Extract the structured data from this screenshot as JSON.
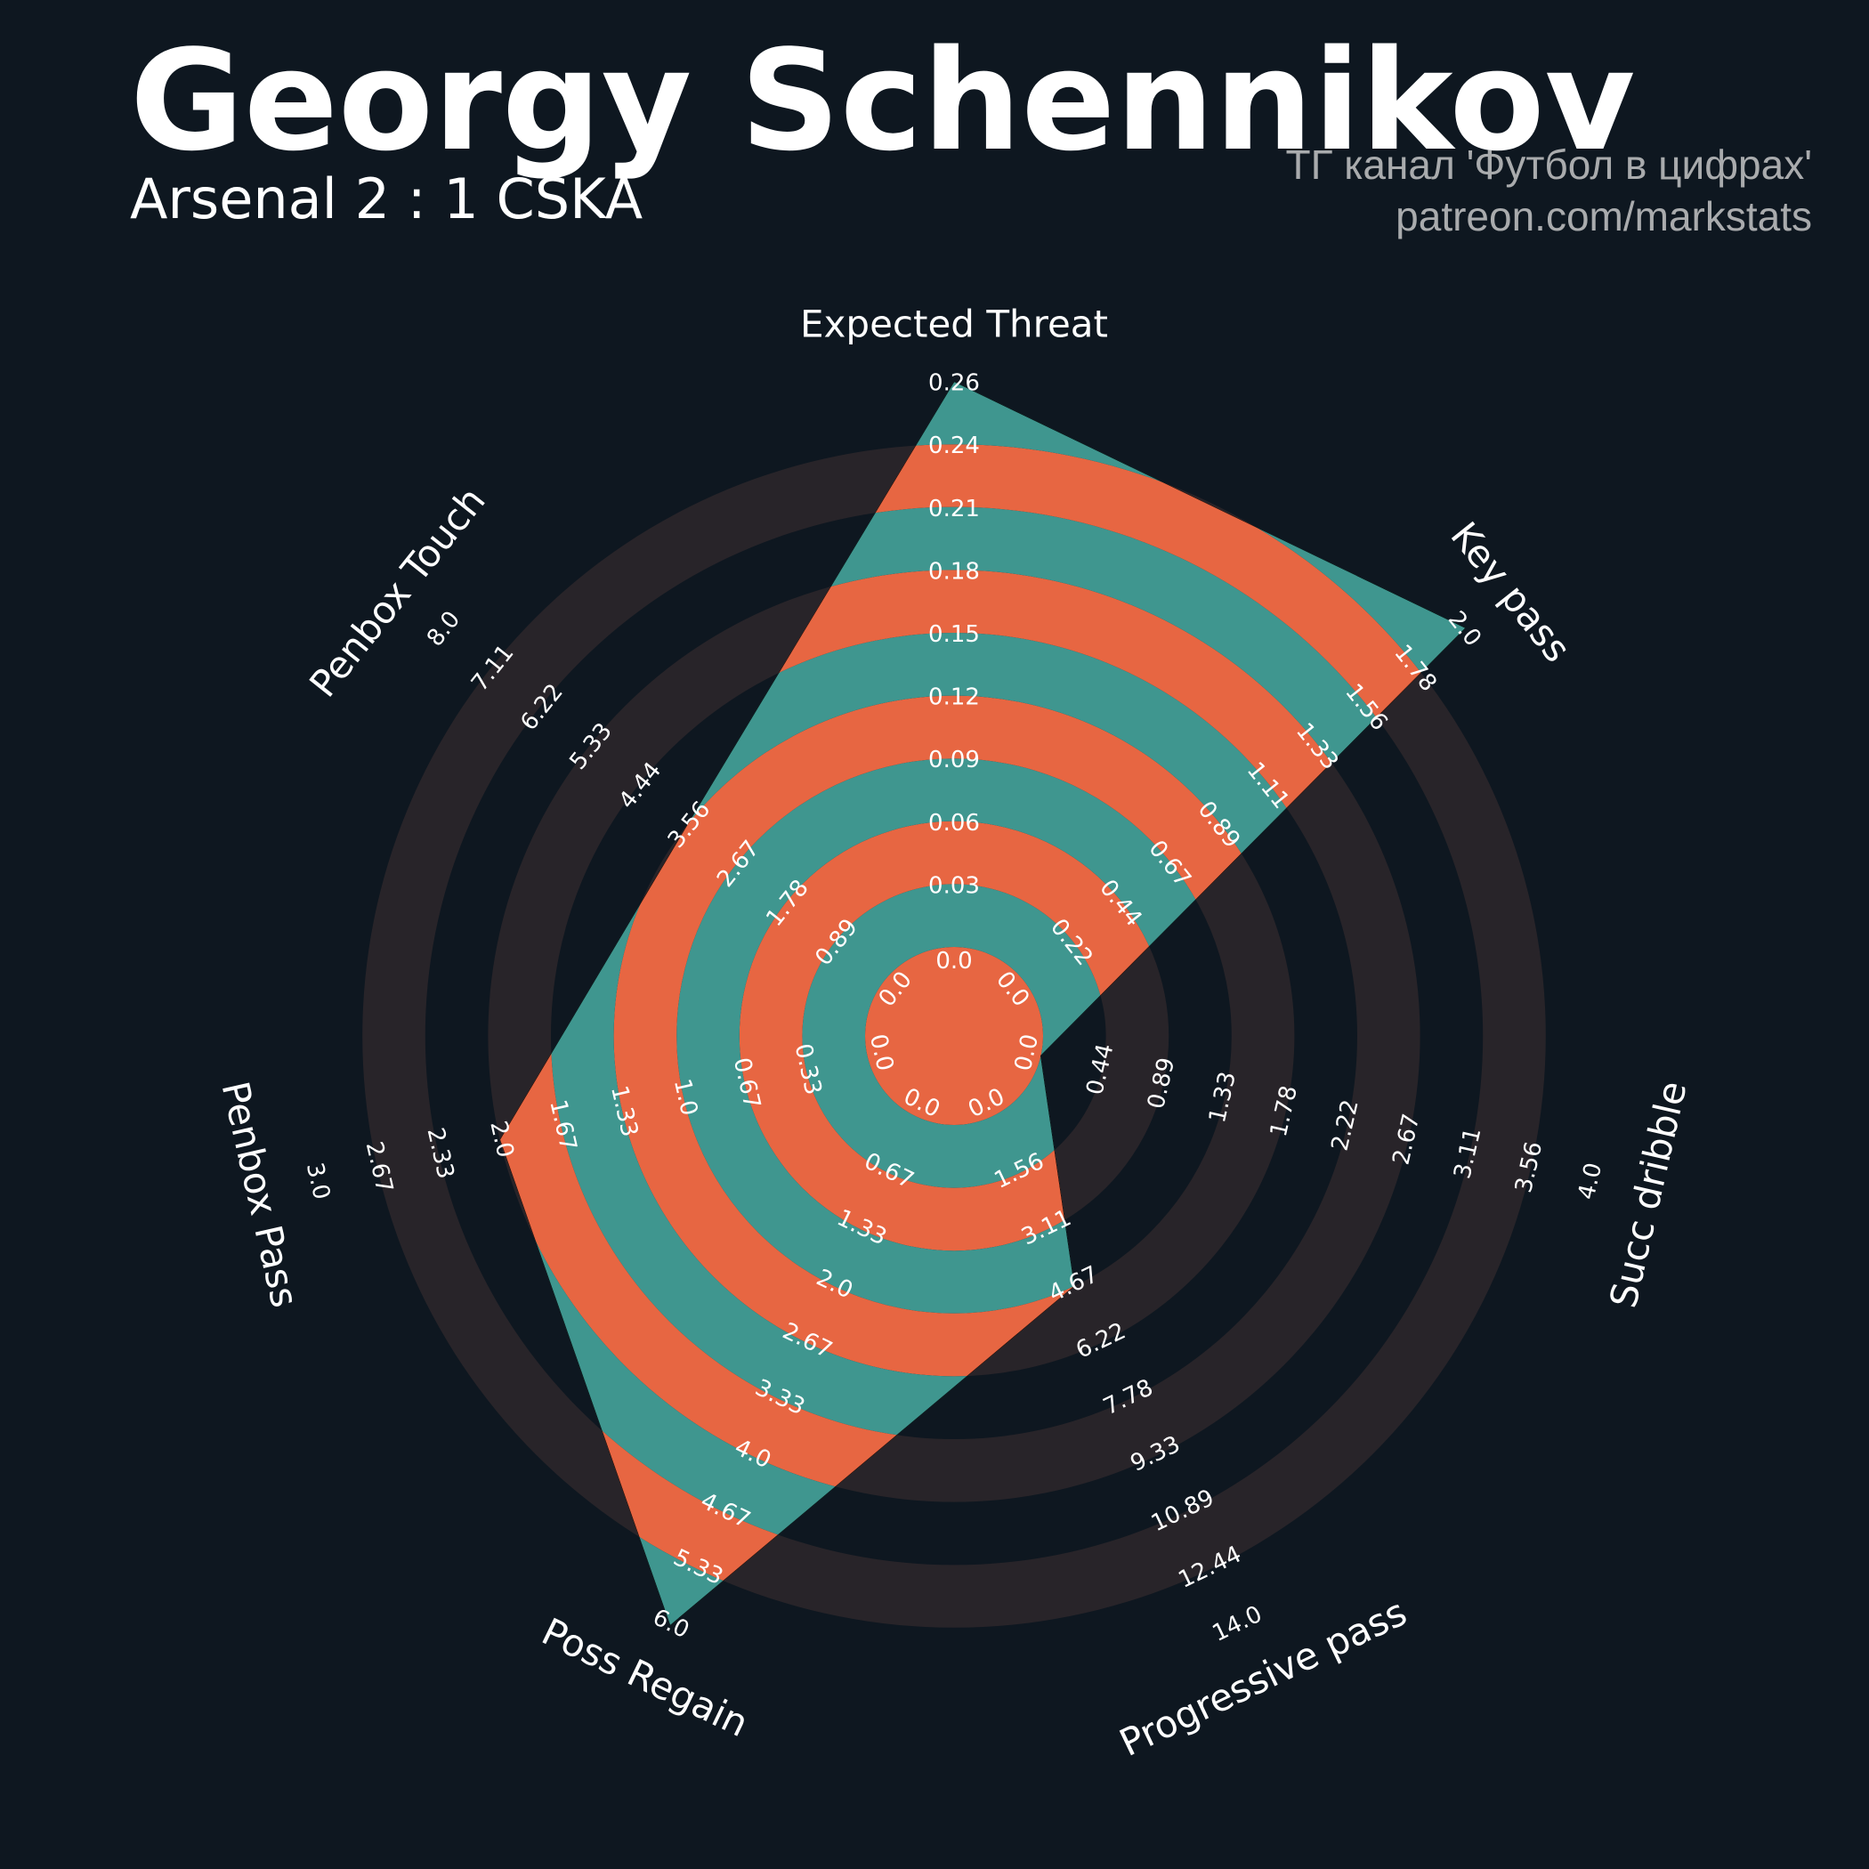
{
  "header": {
    "title": "Georgy Schennikov",
    "subtitle": "Arsenal 2 : 1 CSKA",
    "credit_line1": "ТГ канал 'Футбол в цифрах'",
    "credit_line2": "patreon.com/markstats"
  },
  "colors": {
    "background": "#0e1720",
    "rings_background": "#282429",
    "player_fill_a": "#3f968f",
    "player_fill_b": "#e76642",
    "text": "#ffffff"
  },
  "chart_data": {
    "type": "radar",
    "player": "Georgy Schennikov",
    "params": [
      {
        "name": "Expected Threat",
        "value": 0.26,
        "min": 0.0,
        "max": 0.26,
        "ticks": [
          "0.0",
          "0.03",
          "0.06",
          "0.09",
          "0.12",
          "0.15",
          "0.18",
          "0.21",
          "0.24",
          "0.26"
        ]
      },
      {
        "name": "Key pass",
        "value": 2.0,
        "min": 0.0,
        "max": 2.0,
        "ticks": [
          "0.0",
          "0.22",
          "0.44",
          "0.67",
          "0.89",
          "1.11",
          "1.33",
          "1.56",
          "1.78",
          "2.0"
        ]
      },
      {
        "name": "Succ dribble",
        "value": 0.0,
        "min": 0.0,
        "max": 4.0,
        "ticks": [
          "0.0",
          "0.44",
          "0.89",
          "1.33",
          "1.78",
          "2.22",
          "2.67",
          "3.11",
          "3.56",
          "4.0"
        ]
      },
      {
        "name": "Progressive pass",
        "value": 4.67,
        "min": 0.0,
        "max": 14.0,
        "ticks": [
          "0.0",
          "1.56",
          "3.11",
          "4.67",
          "6.22",
          "7.78",
          "9.33",
          "10.89",
          "12.44",
          "14.0"
        ]
      },
      {
        "name": "Poss Regain",
        "value": 6.0,
        "min": 0.0,
        "max": 6.0,
        "ticks": [
          "0.0",
          "0.67",
          "1.33",
          "2.0",
          "2.67",
          "3.33",
          "4.0",
          "4.67",
          "5.33",
          "6.0"
        ]
      },
      {
        "name": "Penbox Pass",
        "value": 2.0,
        "min": 0.0,
        "max": 3.0,
        "ticks": [
          "0.0",
          "0.33",
          "0.67",
          "1.0",
          "1.33",
          "1.67",
          "2.0",
          "2.33",
          "2.67",
          "3.0"
        ]
      },
      {
        "name": "Penbox Touch",
        "value": 3.56,
        "min": 0.0,
        "max": 8.0,
        "ticks": [
          "0.0",
          "0.89",
          "1.78",
          "2.67",
          "3.56",
          "4.44",
          "5.33",
          "6.22",
          "7.11",
          "8.0"
        ]
      }
    ]
  }
}
